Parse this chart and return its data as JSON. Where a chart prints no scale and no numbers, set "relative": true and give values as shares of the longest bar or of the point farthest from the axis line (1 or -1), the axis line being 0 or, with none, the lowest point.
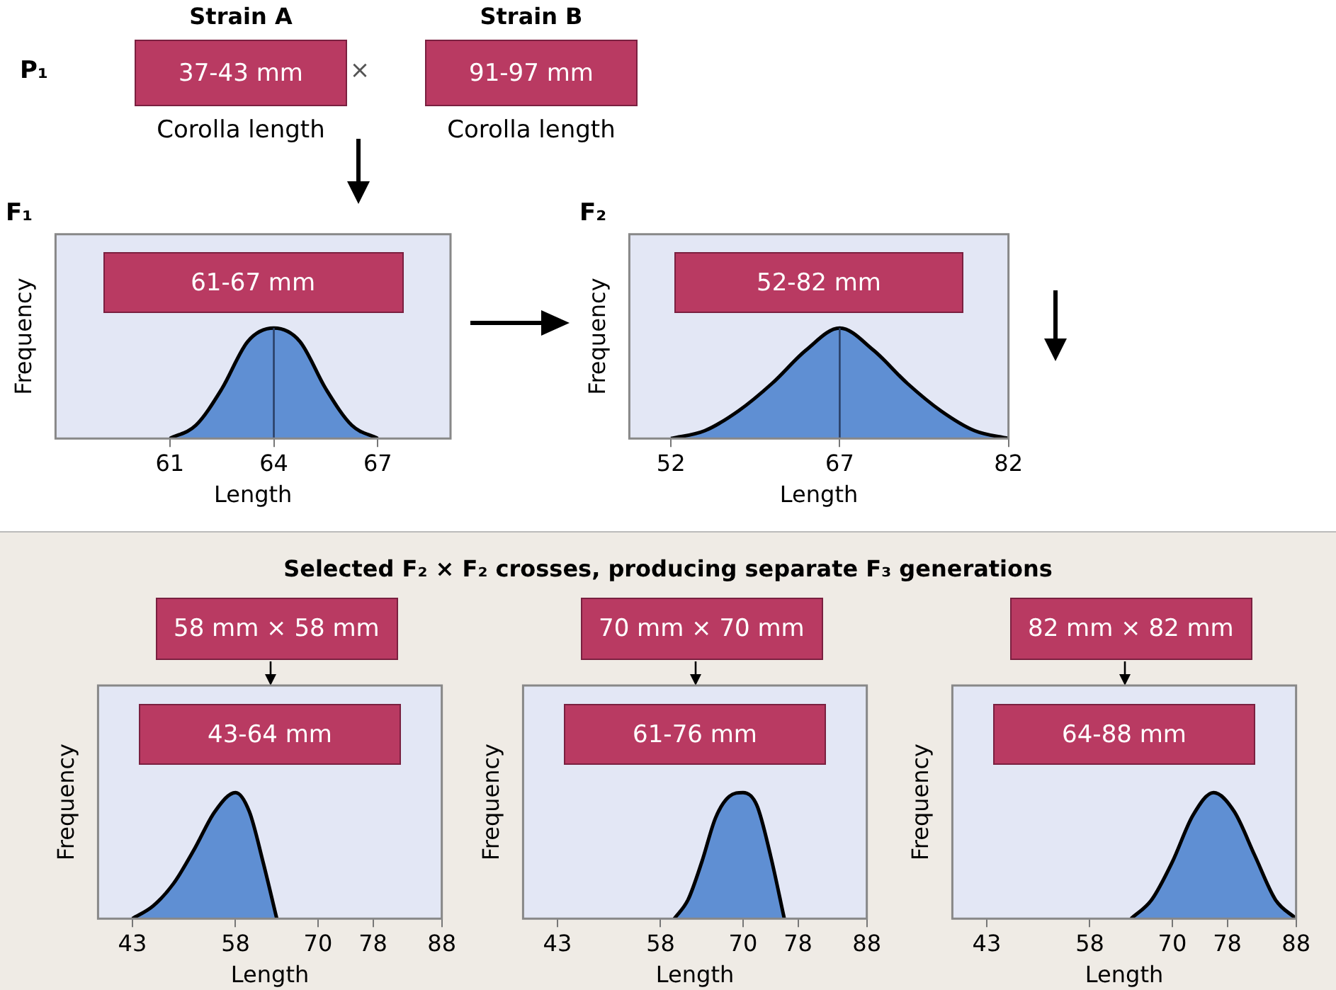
{
  "chart_data": [
    {
      "type": "other",
      "title": "P₁",
      "annotations": [
        "Strain A",
        "37-43 mm",
        "Corolla length",
        "×",
        "Strain B",
        "91-97 mm",
        "Corolla length"
      ]
    },
    {
      "type": "area",
      "title": "F₁",
      "annotations": [
        "61-67 mm"
      ],
      "xlabel": "Length",
      "ylabel": "Frequency",
      "relative": true,
      "xlim": [
        57.7,
        69.1
      ],
      "xticks": [
        61,
        64,
        67
      ],
      "series": [
        {
          "color": "#5f8fd3",
          "x": [
            61,
            61.75,
            62.5,
            63.25,
            64,
            64.75,
            65.5,
            66.25,
            67
          ],
          "values": [
            0,
            0.12,
            0.45,
            0.88,
            1,
            0.88,
            0.45,
            0.12,
            0
          ]
        }
      ],
      "ref_lines": [
        {
          "axis": "x",
          "value": 64,
          "color": "#2a3f66"
        }
      ]
    },
    {
      "type": "area",
      "title": "F₂",
      "annotations": [
        "52-82 mm"
      ],
      "xlabel": "Length",
      "ylabel": "Frequency",
      "relative": true,
      "xlim": [
        48.3,
        82
      ],
      "xticks": [
        52,
        67,
        82
      ],
      "series": [
        {
          "color": "#5f8fd3",
          "x": [
            52,
            55,
            58,
            61,
            64,
            67,
            70,
            73,
            76,
            79,
            82
          ],
          "values": [
            0,
            0.07,
            0.25,
            0.5,
            0.8,
            1,
            0.8,
            0.5,
            0.25,
            0.07,
            0
          ]
        }
      ],
      "ref_lines": [
        {
          "axis": "x",
          "value": 67,
          "color": "#2a3f66"
        }
      ]
    },
    {
      "type": "other",
      "title": "Selected F₂ × F₂ crosses, producing separate F₃ generations"
    },
    {
      "type": "area",
      "annotations": [
        "58 mm × 58 mm",
        "43-64 mm"
      ],
      "xlabel": "Length",
      "ylabel": "Frequency",
      "relative": true,
      "xlim": [
        38,
        88
      ],
      "xticks": [
        43,
        58,
        70,
        78,
        88
      ],
      "series": [
        {
          "color": "#5f8fd3",
          "x": [
            43,
            46,
            49,
            52,
            55,
            58,
            60,
            62,
            64
          ],
          "values": [
            0,
            0.1,
            0.28,
            0.55,
            0.85,
            1,
            0.85,
            0.45,
            0
          ]
        }
      ]
    },
    {
      "type": "area",
      "annotations": [
        "70 mm × 70 mm",
        "61-76 mm"
      ],
      "xlabel": "Length",
      "ylabel": "Frequency",
      "relative": true,
      "xlim": [
        38,
        88
      ],
      "xticks": [
        43,
        58,
        70,
        78,
        88
      ],
      "series": [
        {
          "color": "#5f8fd3",
          "x": [
            60,
            62,
            64,
            66,
            68,
            70,
            72,
            74,
            76
          ],
          "values": [
            0,
            0.15,
            0.45,
            0.8,
            0.97,
            1,
            0.9,
            0.5,
            0
          ]
        }
      ]
    },
    {
      "type": "area",
      "annotations": [
        "82 mm × 82 mm",
        "64-88 mm"
      ],
      "xlabel": "Length",
      "ylabel": "Frequency",
      "relative": true,
      "xlim": [
        38,
        88
      ],
      "xticks": [
        43,
        58,
        70,
        78,
        88
      ],
      "series": [
        {
          "color": "#5f8fd3",
          "x": [
            64,
            67,
            70,
            73,
            76,
            79,
            82,
            85,
            88
          ],
          "values": [
            0,
            0.15,
            0.45,
            0.82,
            1,
            0.85,
            0.5,
            0.15,
            0
          ]
        }
      ]
    }
  ]
}
